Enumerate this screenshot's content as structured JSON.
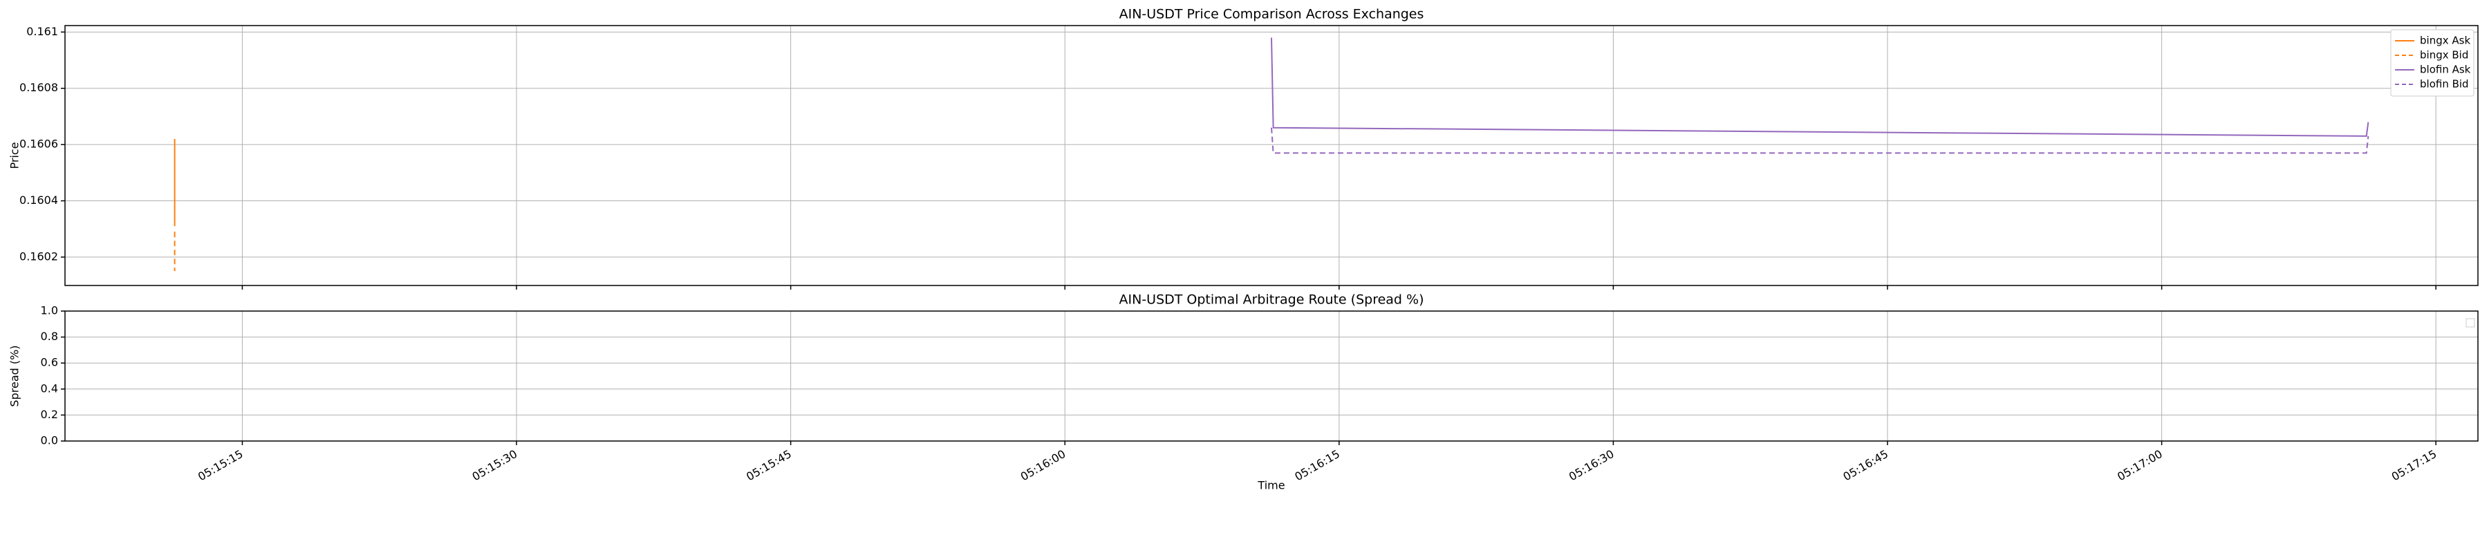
{
  "chart_data": [
    {
      "type": "line",
      "title": "AIN-USDT Price Comparison Across Exchanges",
      "ylabel": "Price",
      "xlim": [
        "05:15:05.3",
        "05:17:17.3"
      ],
      "ylim": [
        0.160099,
        0.161023
      ],
      "yticks": [
        0.1602,
        0.1604,
        0.1606,
        0.1608,
        0.161
      ],
      "grid": true,
      "legend": "upper right",
      "series": [
        {
          "name": "bingx Ask",
          "color": "#ff7f0e",
          "linestyle": "solid",
          "x": [
            "05:15:11.3",
            "05:15:11.3"
          ],
          "values": [
            0.16062,
            0.16031
          ]
        },
        {
          "name": "bingx Bid",
          "color": "#ff7f0e",
          "linestyle": "dashed",
          "x": [
            "05:15:11.3",
            "05:15:11.3"
          ],
          "values": [
            0.16029,
            0.16015
          ]
        },
        {
          "name": "blofin Ask",
          "color": "#9467bd",
          "linestyle": "solid",
          "x": [
            "05:16:11.3",
            "05:16:11.4",
            "05:17:11.2",
            "05:17:11.3"
          ],
          "values": [
            0.16098,
            0.16066,
            0.16063,
            0.16068
          ]
        },
        {
          "name": "blofin Bid",
          "color": "#9467bd",
          "linestyle": "dashed",
          "x": [
            "05:16:11.3",
            "05:16:11.4",
            "05:17:11.2",
            "05:17:11.3"
          ],
          "values": [
            0.16066,
            0.16057,
            0.16057,
            0.16063
          ]
        }
      ]
    },
    {
      "type": "line",
      "title": "AIN-USDT Optimal Arbitrage Route (Spread %)",
      "ylabel": "Spread (%)",
      "xlabel": "Time",
      "xlim": [
        "05:15:05.3",
        "05:17:17.3"
      ],
      "ylim": [
        0,
        1
      ],
      "xticks": [
        "05:15:15",
        "05:15:30",
        "05:15:45",
        "05:16:00",
        "05:16:15",
        "05:16:30",
        "05:16:45",
        "05:17:00",
        "05:17:15"
      ],
      "yticks": [
        {
          "value": 0,
          "label": "0.0"
        },
        0.2,
        0.4,
        0.6,
        0.8,
        {
          "value": 1,
          "label": "1.0"
        }
      ],
      "grid": true,
      "series": []
    }
  ]
}
